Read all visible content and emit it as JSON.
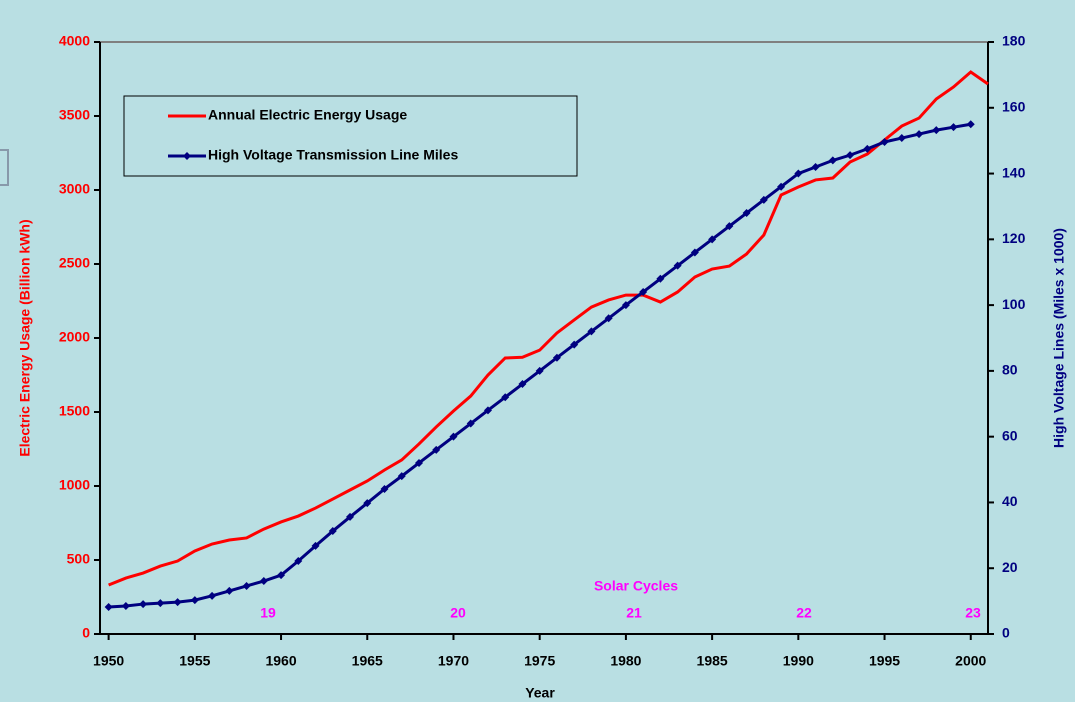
{
  "chart_data": {
    "type": "line",
    "x_label": "Year",
    "y_label": "Electric Energy Usage (Billion kWh)",
    "y2_label": "High Voltage Lines (Miles x 1000)",
    "x": [
      1950,
      1951,
      1952,
      1953,
      1954,
      1955,
      1956,
      1957,
      1958,
      1959,
      1960,
      1961,
      1962,
      1963,
      1964,
      1965,
      1966,
      1967,
      1968,
      1969,
      1970,
      1971,
      1972,
      1973,
      1974,
      1975,
      1976,
      1977,
      1978,
      1979,
      1980,
      1981,
      1982,
      1983,
      1984,
      1985,
      1986,
      1987,
      1988,
      1989,
      1990,
      1991,
      1992,
      1993,
      1994,
      1995,
      1996,
      1997,
      1998,
      1999,
      2000,
      2001
    ],
    "series": [
      {
        "name": "Annual Electric Energy Usage",
        "color": "#ff0000",
        "axis": "y",
        "markers": false,
        "values": [
          331,
          378,
          412,
          459,
          493,
          561,
          608,
          635,
          649,
          709,
          757,
          797,
          851,
          912,
          973,
          1034,
          1108,
          1176,
          1284,
          1399,
          1507,
          1608,
          1750,
          1865,
          1870,
          1918,
          2034,
          2122,
          2209,
          2257,
          2290,
          2290,
          2243,
          2311,
          2412,
          2466,
          2486,
          2568,
          2696,
          2966,
          3020,
          3068,
          3081,
          3189,
          3243,
          3338,
          3432,
          3486,
          3615,
          3696,
          3797,
          3716
        ]
      },
      {
        "name": "High Voltage Transmission Line Miles",
        "color": "#000080",
        "axis": "y2",
        "markers": true,
        "values": [
          8.2,
          8.5,
          9.1,
          9.4,
          9.7,
          10.3,
          11.6,
          13.1,
          14.6,
          16.1,
          17.9,
          22.2,
          26.8,
          31.3,
          35.6,
          39.8,
          44.1,
          48,
          52,
          56,
          60,
          64,
          68,
          72,
          76,
          80,
          84,
          88,
          92,
          96,
          100,
          104,
          108,
          112,
          116,
          120,
          124,
          128,
          132,
          136,
          140,
          142,
          144,
          145.6,
          147.5,
          149.6,
          150.8,
          152,
          153.2,
          154.1,
          155,
          null
        ]
      }
    ],
    "xlim": [
      1949.5,
      2001
    ],
    "xticks": [
      1950,
      1955,
      1960,
      1965,
      1970,
      1975,
      1980,
      1985,
      1990,
      1995,
      2000
    ],
    "ylim": [
      0,
      4000
    ],
    "yticks": [
      0,
      500,
      1000,
      1500,
      2000,
      2500,
      3000,
      3500,
      4000
    ],
    "y2lim": [
      0,
      180
    ],
    "y2ticks": [
      0,
      20,
      40,
      60,
      80,
      100,
      120,
      140,
      160,
      180
    ],
    "annotations": [
      "Solar Cycles",
      "19",
      "20",
      "21",
      "22",
      "23"
    ],
    "legend": "upper left"
  }
}
